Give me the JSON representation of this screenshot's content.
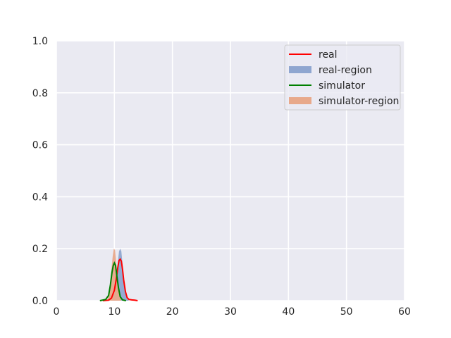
{
  "chart_data": {
    "type": "line",
    "title": "",
    "xlabel": "",
    "ylabel": "",
    "xlim": [
      0,
      60
    ],
    "ylim": [
      0,
      1.0
    ],
    "xticks": [
      0,
      10,
      20,
      30,
      40,
      50,
      60
    ],
    "yticks": [
      0.0,
      0.2,
      0.4,
      0.6,
      0.8,
      1.0
    ],
    "xtick_labels": [
      "0",
      "10",
      "20",
      "30",
      "40",
      "50",
      "60"
    ],
    "ytick_labels": [
      "0.0",
      "0.2",
      "0.4",
      "0.6",
      "0.8",
      "1.0"
    ],
    "grid": true,
    "background": "#eaeaf2",
    "legend_position": "top-right",
    "series": [
      {
        "name": "real",
        "kind": "line",
        "color": "#ff0000",
        "x": [
          8.0,
          9.0,
          9.5,
          10.0,
          10.3,
          10.6,
          10.8,
          11.0,
          11.2,
          11.4,
          11.6,
          11.9,
          12.2,
          12.5,
          13.0,
          13.5,
          14.0
        ],
        "y": [
          0.0,
          0.002,
          0.01,
          0.04,
          0.08,
          0.13,
          0.155,
          0.16,
          0.152,
          0.12,
          0.08,
          0.035,
          0.012,
          0.005,
          0.003,
          0.002,
          0.0
        ]
      },
      {
        "name": "real-region",
        "kind": "area",
        "color": "#8fa6d0",
        "x": [
          9.5,
          10.0,
          10.3,
          10.6,
          10.8,
          11.0,
          11.2,
          11.4,
          11.6,
          11.9,
          12.2,
          12.5
        ],
        "y": [
          0.0,
          0.03,
          0.08,
          0.15,
          0.19,
          0.2,
          0.19,
          0.14,
          0.08,
          0.03,
          0.008,
          0.0
        ]
      },
      {
        "name": "simulator",
        "kind": "line",
        "color": "#008000",
        "x": [
          7.5,
          8.5,
          9.0,
          9.3,
          9.6,
          9.8,
          10.0,
          10.2,
          10.4,
          10.7,
          11.0,
          11.4,
          12.0
        ],
        "y": [
          0.0,
          0.005,
          0.02,
          0.06,
          0.11,
          0.135,
          0.145,
          0.135,
          0.1,
          0.05,
          0.015,
          0.003,
          0.0
        ]
      },
      {
        "name": "simulator-region",
        "kind": "area",
        "color": "#e8a98b",
        "x": [
          8.8,
          9.1,
          9.4,
          9.7,
          9.9,
          10.1,
          10.3,
          10.6,
          10.9,
          11.2
        ],
        "y": [
          0.0,
          0.03,
          0.1,
          0.17,
          0.2,
          0.195,
          0.15,
          0.07,
          0.015,
          0.0
        ]
      }
    ]
  },
  "legend": {
    "items": [
      {
        "label": "real",
        "swatch": "line",
        "color": "#ff0000"
      },
      {
        "label": "real-region",
        "swatch": "patch",
        "color": "#8fa6d0"
      },
      {
        "label": "simulator",
        "swatch": "line",
        "color": "#008000"
      },
      {
        "label": "simulator-region",
        "swatch": "patch",
        "color": "#e8a98b"
      }
    ]
  }
}
